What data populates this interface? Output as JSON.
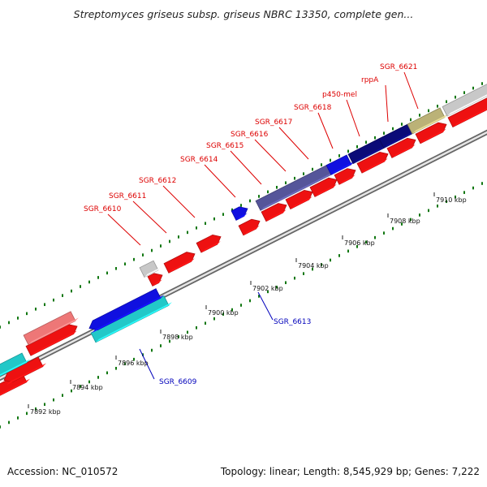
{
  "title": "Streptomyces griseus subsp. griseus NBRC 13350, complete gen...",
  "footer": {
    "accession": "Accession: NC_010572",
    "topology": "Topology: linear; Length: 8,545,929 bp; Genes: 7,222"
  },
  "colors": {
    "red": "#ee1111",
    "dark_red": "#aa0000",
    "navy": "#0b0b78",
    "blue": "#1010e0",
    "slate": "#55559a",
    "cyan": "#22c8c8",
    "pink": "#ee7777",
    "gray": "#c8c8c8",
    "olive": "#bbb277",
    "tick": "#117711",
    "label_red": "#dd0000",
    "label_blue": "#0000bb"
  },
  "ticks": [
    {
      "label": "7892 kbp"
    },
    {
      "label": "7894 kbp"
    },
    {
      "label": "7896 kbp"
    },
    {
      "label": "7898 kbp"
    },
    {
      "label": "7900 kbp"
    },
    {
      "label": "7902 kbp"
    },
    {
      "label": "7904 kbp"
    },
    {
      "label": "7906 kbp"
    },
    {
      "label": "7908 kbp"
    },
    {
      "label": "7910 kbp"
    }
  ],
  "labels": {
    "top": [
      "SGR_6610",
      "SGR_6611",
      "SGR_6612",
      "SGR_6614",
      "SGR_6615",
      "SGR_6616",
      "SGR_6617",
      "SGR_6618",
      "p450-mel",
      "rppA",
      "SGR_6621"
    ],
    "bottom": [
      "SGR_6609",
      "SGR_6613"
    ]
  }
}
